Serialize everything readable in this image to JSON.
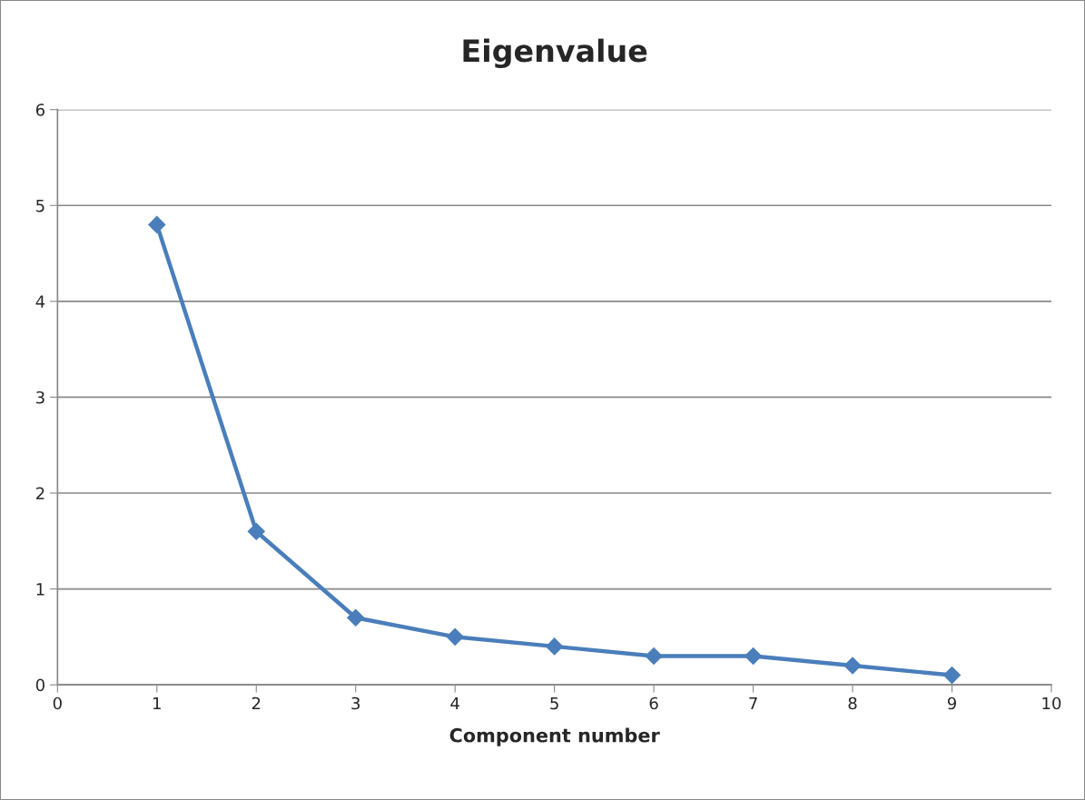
{
  "chart_data": {
    "type": "line",
    "title": "Eigenvalue",
    "xlabel": "Component number",
    "x": [
      1,
      2,
      3,
      4,
      5,
      6,
      7,
      8,
      9
    ],
    "series": [
      {
        "color": "#4a7ebb",
        "values": [
          4.8,
          1.6,
          0.7,
          0.5,
          0.4,
          0.3,
          0.3,
          0.2,
          0.1
        ]
      }
    ],
    "xlim": [
      0,
      10
    ],
    "xticks": [
      0,
      1,
      2,
      3,
      4,
      5,
      6,
      7,
      8,
      9,
      10
    ],
    "ylim": [
      0,
      6
    ],
    "yticks": [
      0,
      1,
      2,
      3,
      4,
      5,
      6
    ],
    "grid": "y",
    "marker": "diamond",
    "line_style": "solid"
  }
}
